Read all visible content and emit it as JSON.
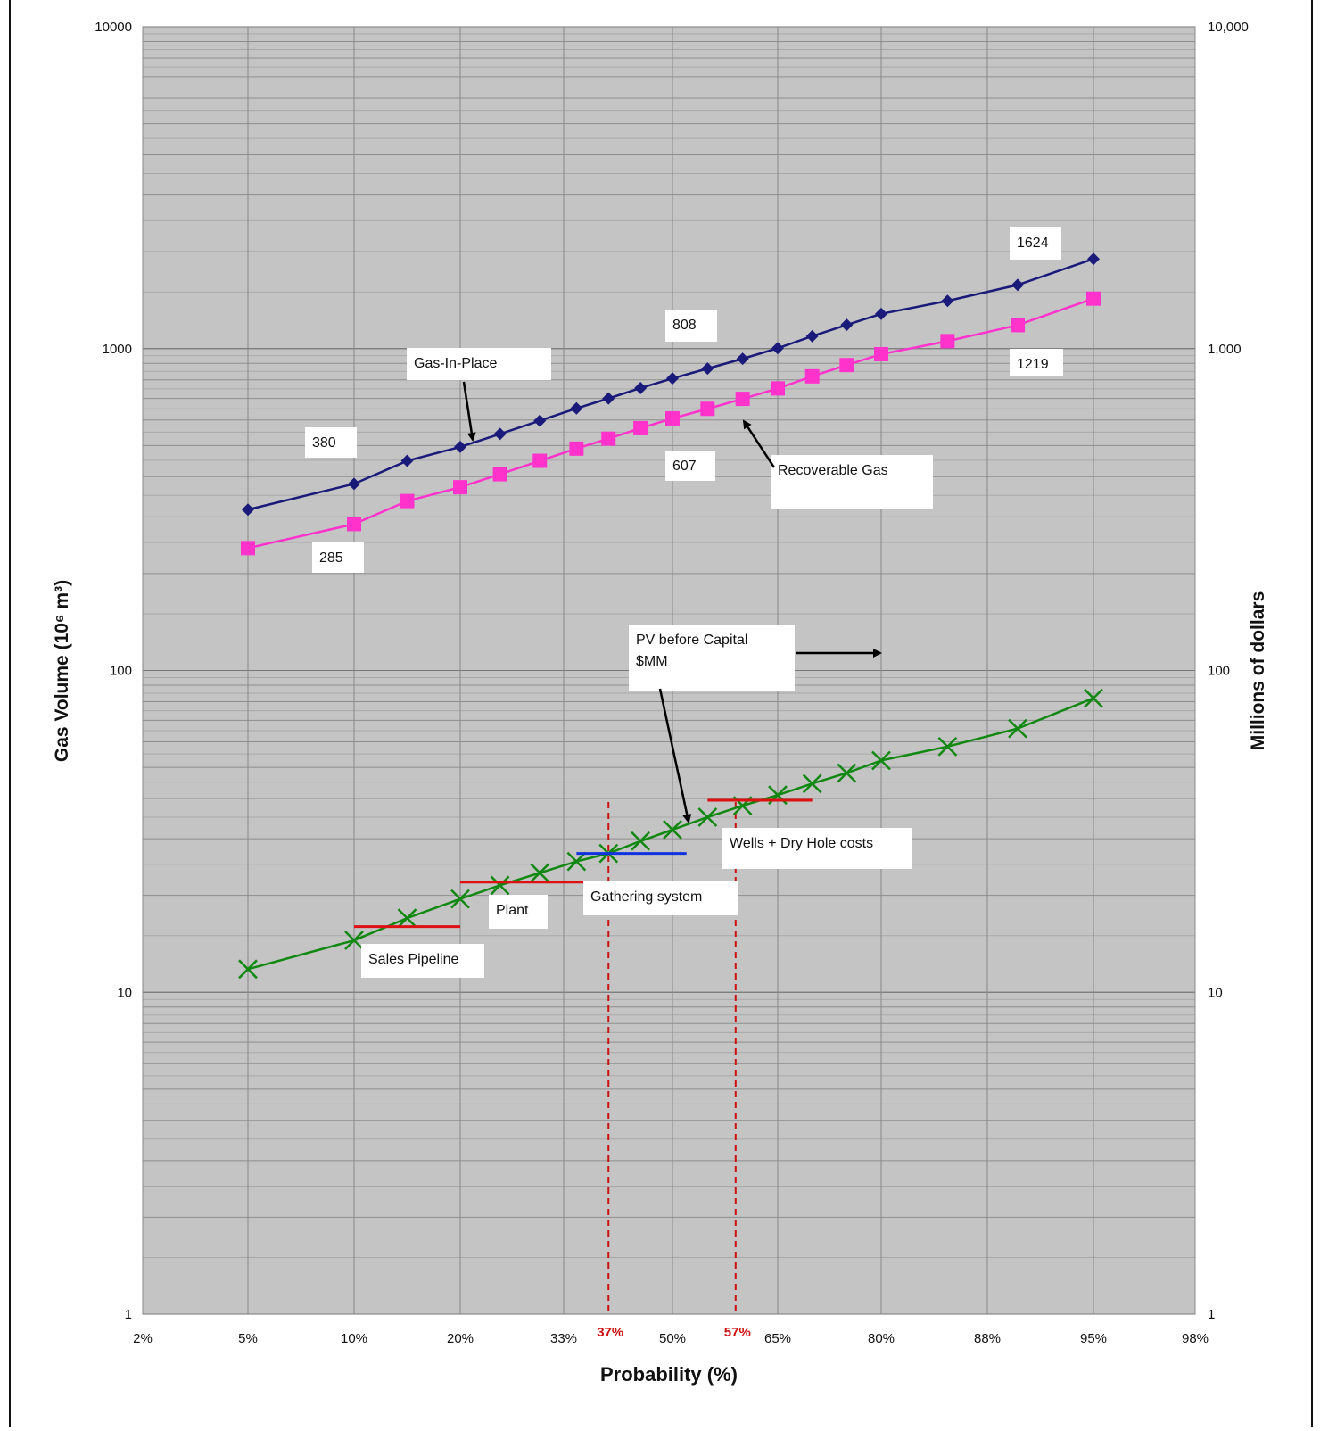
{
  "chart_data": {
    "type": "line",
    "xlabel": "Probability (%)",
    "ylabel": "Gas Volume (10⁶ m³)",
    "ylabel_right": "Millions of dollars",
    "y_scale": "log",
    "ylim": [
      1,
      10000
    ],
    "x_scale": "normal-probability",
    "x_ticks": [
      "2%",
      "5%",
      "10%",
      "20%",
      "33%",
      "50%",
      "65%",
      "80%",
      "88%",
      "95%",
      "98%"
    ],
    "x_tick_values": [
      2,
      5,
      10,
      20,
      33,
      50,
      65,
      80,
      88,
      95,
      98
    ],
    "y_ticks_left": [
      "10000",
      "1000",
      "100",
      "10",
      "1"
    ],
    "y_ticks_right": [
      "10,000",
      "1,000",
      "100",
      "10",
      "1"
    ],
    "y_tick_values": [
      10000,
      1000,
      100,
      10,
      1
    ],
    "grid": true,
    "background": "#c4c4c4",
    "series": [
      {
        "name": "Gas-In-Place",
        "color": "#1a1a7a",
        "marker": "diamond",
        "x": [
          5,
          10,
          15,
          20,
          25,
          30,
          35,
          40,
          45,
          50,
          55,
          60,
          65,
          70,
          75,
          80,
          85,
          90,
          95
        ],
        "y": [
          316,
          380,
          448,
          495,
          543,
          597,
          652,
          700,
          754,
          808,
          867,
          930,
          1003,
          1093,
          1185,
          1282,
          1407,
          1577,
          1900
        ]
      },
      {
        "name": "Recoverable Gas",
        "color": "#ff33cc",
        "marker": "square",
        "x": [
          5,
          10,
          15,
          20,
          25,
          30,
          35,
          40,
          45,
          50,
          55,
          60,
          65,
          70,
          75,
          80,
          85,
          90,
          95
        ],
        "y": [
          240,
          285,
          336,
          371,
          407,
          448,
          489,
          525,
          566,
          607,
          650,
          698,
          752,
          820,
          889,
          961,
          1055,
          1183,
          1430
        ]
      },
      {
        "name": "PV before Capital $MM",
        "color": "#118811",
        "marker": "x",
        "x": [
          5,
          10,
          15,
          20,
          25,
          30,
          35,
          40,
          45,
          50,
          55,
          60,
          65,
          70,
          75,
          80,
          85,
          90,
          95
        ],
        "y": [
          11.8,
          14.5,
          17.0,
          19.5,
          21.5,
          23.5,
          25.5,
          27.0,
          29.5,
          32.0,
          35.0,
          38.0,
          41.0,
          44.5,
          48.0,
          52.5,
          58.0,
          66.0,
          82.0
        ]
      }
    ],
    "capital_bars": [
      {
        "label": "Sales Pipeline",
        "color": "#dd1111",
        "x_from": 10,
        "x_to": 20,
        "y": 16.0
      },
      {
        "label": "Plant",
        "color": "#dd1111",
        "x_from": 20,
        "x_to": 40,
        "y": 22.0
      },
      {
        "label": "Gathering system",
        "color": "#1133dd",
        "x_from": 35,
        "x_to": 52,
        "y": 27.0
      },
      {
        "label": "Wells + Dry Hole costs",
        "color": "#dd1111",
        "x_from": 55,
        "x_to": 70,
        "y": 39.5
      }
    ],
    "threshold_lines": [
      {
        "label": "37%",
        "x": 40,
        "color": "#cc1111"
      },
      {
        "label": "57%",
        "x": 59,
        "color": "#cc1111"
      }
    ],
    "annotations": [
      {
        "text": "1624",
        "x": 95,
        "y": 2700
      },
      {
        "text": "808",
        "x": 52,
        "y": 1300
      },
      {
        "text": "1219",
        "x": 95,
        "y": 1000
      },
      {
        "text": "380",
        "x": 9,
        "y": 520
      },
      {
        "text": "607",
        "x": 52,
        "y": 420
      },
      {
        "text": "285",
        "x": 10,
        "y": 230
      }
    ],
    "callouts": [
      {
        "text": "Gas-In-Place"
      },
      {
        "text": "Recoverable Gas"
      },
      {
        "lines": [
          "PV before Capital",
          "$MM"
        ]
      }
    ]
  }
}
